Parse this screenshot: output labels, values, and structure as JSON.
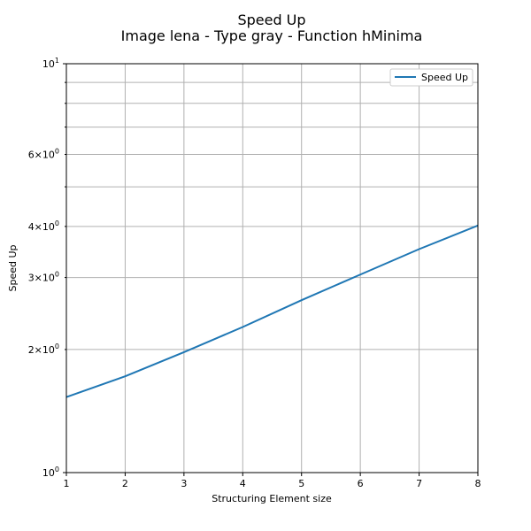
{
  "chart_data": {
    "type": "line",
    "title": "Speed Up",
    "subtitle": "Image lena - Type gray - Function hMinima",
    "xlabel": "Structuring Element size",
    "ylabel": "Speed Up",
    "xlim": [
      1,
      8
    ],
    "ylim": [
      1,
      10
    ],
    "yscale": "log",
    "grid": true,
    "legend_position": "top-right",
    "x": [
      1,
      2,
      3,
      4,
      5,
      6,
      7,
      8
    ],
    "series": [
      {
        "name": "Speed Up",
        "color": "#1f77b4",
        "values": [
          1.53,
          1.72,
          1.97,
          2.27,
          2.64,
          3.05,
          3.52,
          4.02
        ]
      }
    ],
    "x_ticks": [
      "1",
      "2",
      "3",
      "4",
      "5",
      "6",
      "7",
      "8"
    ],
    "y_major_ticks": [
      {
        "value": 1,
        "base": "10",
        "exp": "0"
      },
      {
        "value": 10,
        "base": "10",
        "exp": "1"
      }
    ],
    "y_minor_ticks": [
      {
        "value": 2,
        "mult": "2",
        "base": "10",
        "exp": "0"
      },
      {
        "value": 3,
        "mult": "3",
        "base": "10",
        "exp": "0"
      },
      {
        "value": 4,
        "mult": "4",
        "base": "10",
        "exp": "0"
      },
      {
        "value": 6,
        "mult": "6",
        "base": "10",
        "exp": "0"
      }
    ],
    "y_minor_unlabeled": [
      5,
      7,
      8,
      9
    ]
  }
}
